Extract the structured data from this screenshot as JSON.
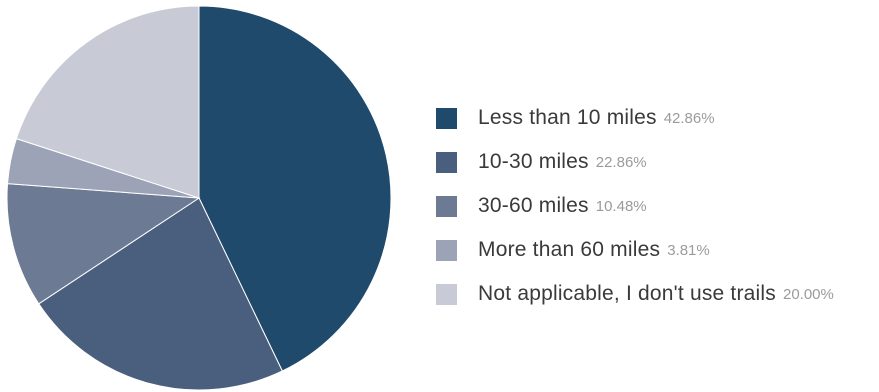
{
  "chart_data": {
    "type": "pie",
    "start_angle_deg": 0,
    "direction": "clockwise",
    "slices": [
      {
        "label": "Less than 10 miles",
        "value": 42.86,
        "display": "42.86%",
        "color": "#1f4a6b"
      },
      {
        "label": "10-30 miles",
        "value": 22.86,
        "display": "22.86%",
        "color": "#4a5f7e"
      },
      {
        "label": "30-60 miles",
        "value": 10.48,
        "display": "10.48%",
        "color": "#6c7a93"
      },
      {
        "label": "More than 60 miles",
        "value": 3.81,
        "display": "3.81%",
        "color": "#9da3b6"
      },
      {
        "label": "Not applicable, I don't use trails",
        "value": 20.0,
        "display": "20.00%",
        "color": "#c8cad6"
      }
    ],
    "legend_placement": "right"
  }
}
